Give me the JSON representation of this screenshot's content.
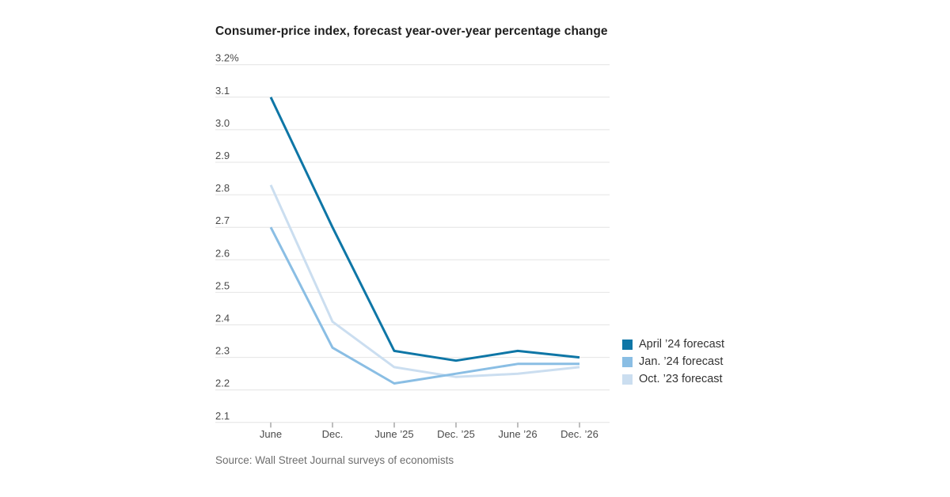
{
  "title": "Consumer-price index, forecast year-over-year percentage change",
  "source": "Source: Wall Street Journal surveys of economists",
  "chart_data": {
    "type": "line",
    "categories": [
      "June",
      "Dec.",
      "June ’25",
      "Dec. ’25",
      "June ’26",
      "Dec. ’26"
    ],
    "series": [
      {
        "name": "April ’24 forecast",
        "color": "#0e76a6",
        "values": [
          3.1,
          2.7,
          2.32,
          2.29,
          2.32,
          2.3
        ]
      },
      {
        "name": "Jan. ’24 forecast",
        "color": "#8abee4",
        "values": [
          2.7,
          2.33,
          2.22,
          2.25,
          2.28,
          2.28
        ]
      },
      {
        "name": "Oct. ’23 forecast",
        "color": "#cbdef0",
        "values": [
          2.83,
          2.41,
          2.27,
          2.24,
          2.25,
          2.27
        ]
      }
    ],
    "ylim": [
      2.1,
      3.2
    ],
    "ytick_step": 0.1,
    "y_top_suffix": "%",
    "grid": true,
    "legend_position": "right"
  },
  "style": {
    "grid_color": "#e4e4e4",
    "tick_color": "#9b9b9b",
    "axis_label_color": "#4a4a4a",
    "title_color": "#202020",
    "legend_text_color": "#333333",
    "background": "#ffffff"
  }
}
